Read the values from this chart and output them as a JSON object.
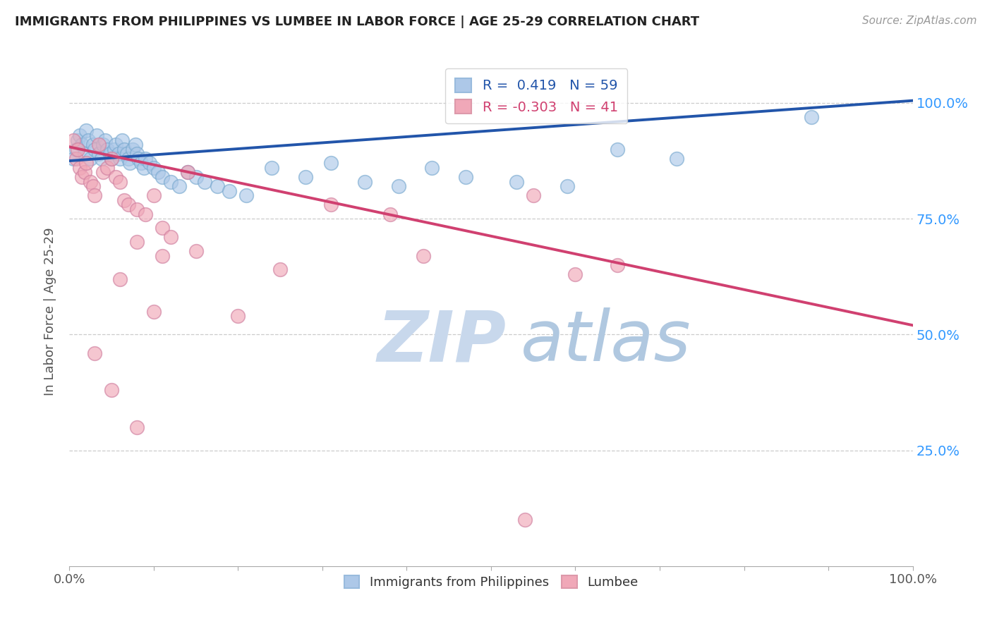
{
  "title": "IMMIGRANTS FROM PHILIPPINES VS LUMBEE IN LABOR FORCE | AGE 25-29 CORRELATION CHART",
  "source_text": "Source: ZipAtlas.com",
  "ylabel": "In Labor Force | Age 25-29",
  "legend_blue_label": "Immigrants from Philippines",
  "legend_pink_label": "Lumbee",
  "r_blue": 0.419,
  "n_blue": 59,
  "r_pink": -0.303,
  "n_pink": 41,
  "blue_color": "#adc8e8",
  "blue_line_color": "#2255aa",
  "pink_color": "#f0a8b8",
  "pink_line_color": "#d04070",
  "background_color": "#ffffff",
  "grid_color": "#cccccc",
  "title_color": "#222222",
  "watermark_z_color": "#c8d8e8",
  "watermark_ip_color": "#c0d4f0",
  "watermark_atlas_color": "#b8d0e8",
  "blue_scatter_x": [
    0.005,
    0.008,
    0.01,
    0.012,
    0.015,
    0.018,
    0.02,
    0.022,
    0.025,
    0.028,
    0.03,
    0.032,
    0.035,
    0.038,
    0.04,
    0.042,
    0.045,
    0.048,
    0.05,
    0.053,
    0.055,
    0.058,
    0.06,
    0.062,
    0.065,
    0.068,
    0.07,
    0.072,
    0.075,
    0.078,
    0.08,
    0.082,
    0.085,
    0.088,
    0.09,
    0.095,
    0.1,
    0.105,
    0.11,
    0.12,
    0.13,
    0.14,
    0.15,
    0.16,
    0.175,
    0.19,
    0.21,
    0.24,
    0.28,
    0.31,
    0.35,
    0.39,
    0.43,
    0.47,
    0.53,
    0.59,
    0.65,
    0.72,
    0.88
  ],
  "blue_scatter_y": [
    0.88,
    0.9,
    0.92,
    0.93,
    0.91,
    0.89,
    0.94,
    0.92,
    0.88,
    0.91,
    0.9,
    0.93,
    0.89,
    0.88,
    0.91,
    0.92,
    0.9,
    0.89,
    0.88,
    0.9,
    0.91,
    0.89,
    0.88,
    0.92,
    0.9,
    0.89,
    0.88,
    0.87,
    0.9,
    0.91,
    0.89,
    0.88,
    0.87,
    0.86,
    0.88,
    0.87,
    0.86,
    0.85,
    0.84,
    0.83,
    0.82,
    0.85,
    0.84,
    0.83,
    0.82,
    0.81,
    0.8,
    0.86,
    0.84,
    0.87,
    0.83,
    0.82,
    0.86,
    0.84,
    0.83,
    0.82,
    0.9,
    0.88,
    0.97
  ],
  "pink_scatter_x": [
    0.005,
    0.008,
    0.01,
    0.012,
    0.015,
    0.018,
    0.02,
    0.025,
    0.028,
    0.03,
    0.035,
    0.04,
    0.045,
    0.05,
    0.055,
    0.06,
    0.065,
    0.07,
    0.08,
    0.09,
    0.1,
    0.11,
    0.12,
    0.14,
    0.06,
    0.08,
    0.1,
    0.15,
    0.2,
    0.25,
    0.31,
    0.38,
    0.42,
    0.55,
    0.6,
    0.65,
    0.03,
    0.05,
    0.08,
    0.11,
    0.54
  ],
  "pink_scatter_y": [
    0.92,
    0.88,
    0.9,
    0.86,
    0.84,
    0.85,
    0.87,
    0.83,
    0.82,
    0.8,
    0.91,
    0.85,
    0.86,
    0.88,
    0.84,
    0.83,
    0.79,
    0.78,
    0.77,
    0.76,
    0.8,
    0.73,
    0.71,
    0.85,
    0.62,
    0.7,
    0.55,
    0.68,
    0.54,
    0.64,
    0.78,
    0.76,
    0.67,
    0.8,
    0.63,
    0.65,
    0.46,
    0.38,
    0.3,
    0.67,
    0.1
  ],
  "blue_line_x0": 0.0,
  "blue_line_x1": 1.0,
  "blue_line_y0": 0.875,
  "blue_line_y1": 1.005,
  "pink_line_x0": 0.0,
  "pink_line_x1": 1.0,
  "pink_line_y0": 0.905,
  "pink_line_y1": 0.52,
  "xlim": [
    0.0,
    1.0
  ],
  "ylim": [
    0.0,
    1.1
  ],
  "figsize": [
    14.06,
    8.92
  ],
  "dpi": 100
}
